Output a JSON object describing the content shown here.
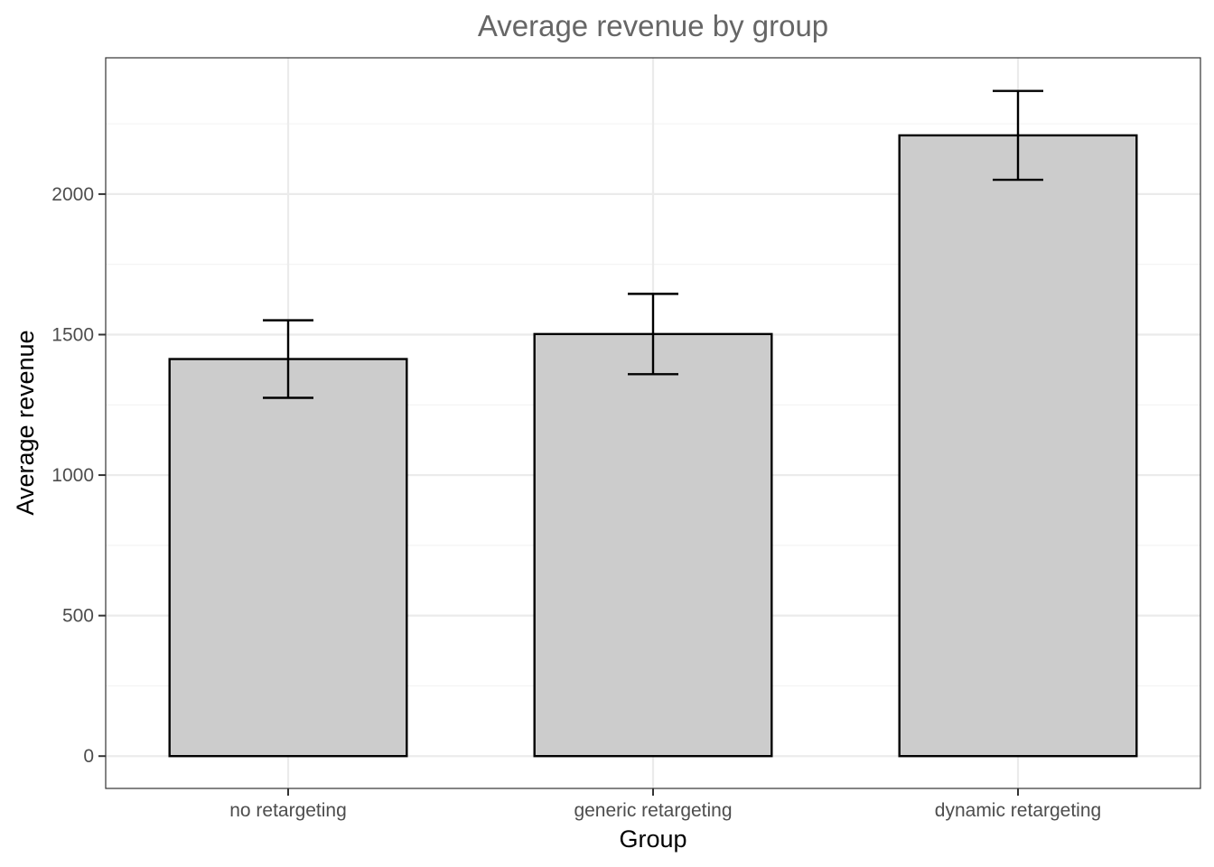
{
  "chart_data": {
    "type": "bar",
    "title": "Average revenue by group",
    "xlabel": "Group",
    "ylabel": "Average revenue",
    "categories": [
      "no retargeting",
      "generic retargeting",
      "dynamic retargeting"
    ],
    "values": [
      1413,
      1502,
      2209
    ],
    "error_bars": [
      {
        "low": 1275,
        "high": 1551
      },
      {
        "low": 1359,
        "high": 1645
      },
      {
        "low": 2051,
        "high": 2367
      }
    ],
    "yticks": [
      0,
      500,
      1000,
      1500,
      2000
    ],
    "ylim": [
      -115,
      2485
    ],
    "grid": true,
    "legend": "none",
    "colors": {
      "bar_fill": "#cccccc",
      "bar_stroke": "#000000",
      "grid_major": "#ebebeb",
      "grid_minor": "#f2f2f2",
      "panel_border": "#333333"
    }
  }
}
